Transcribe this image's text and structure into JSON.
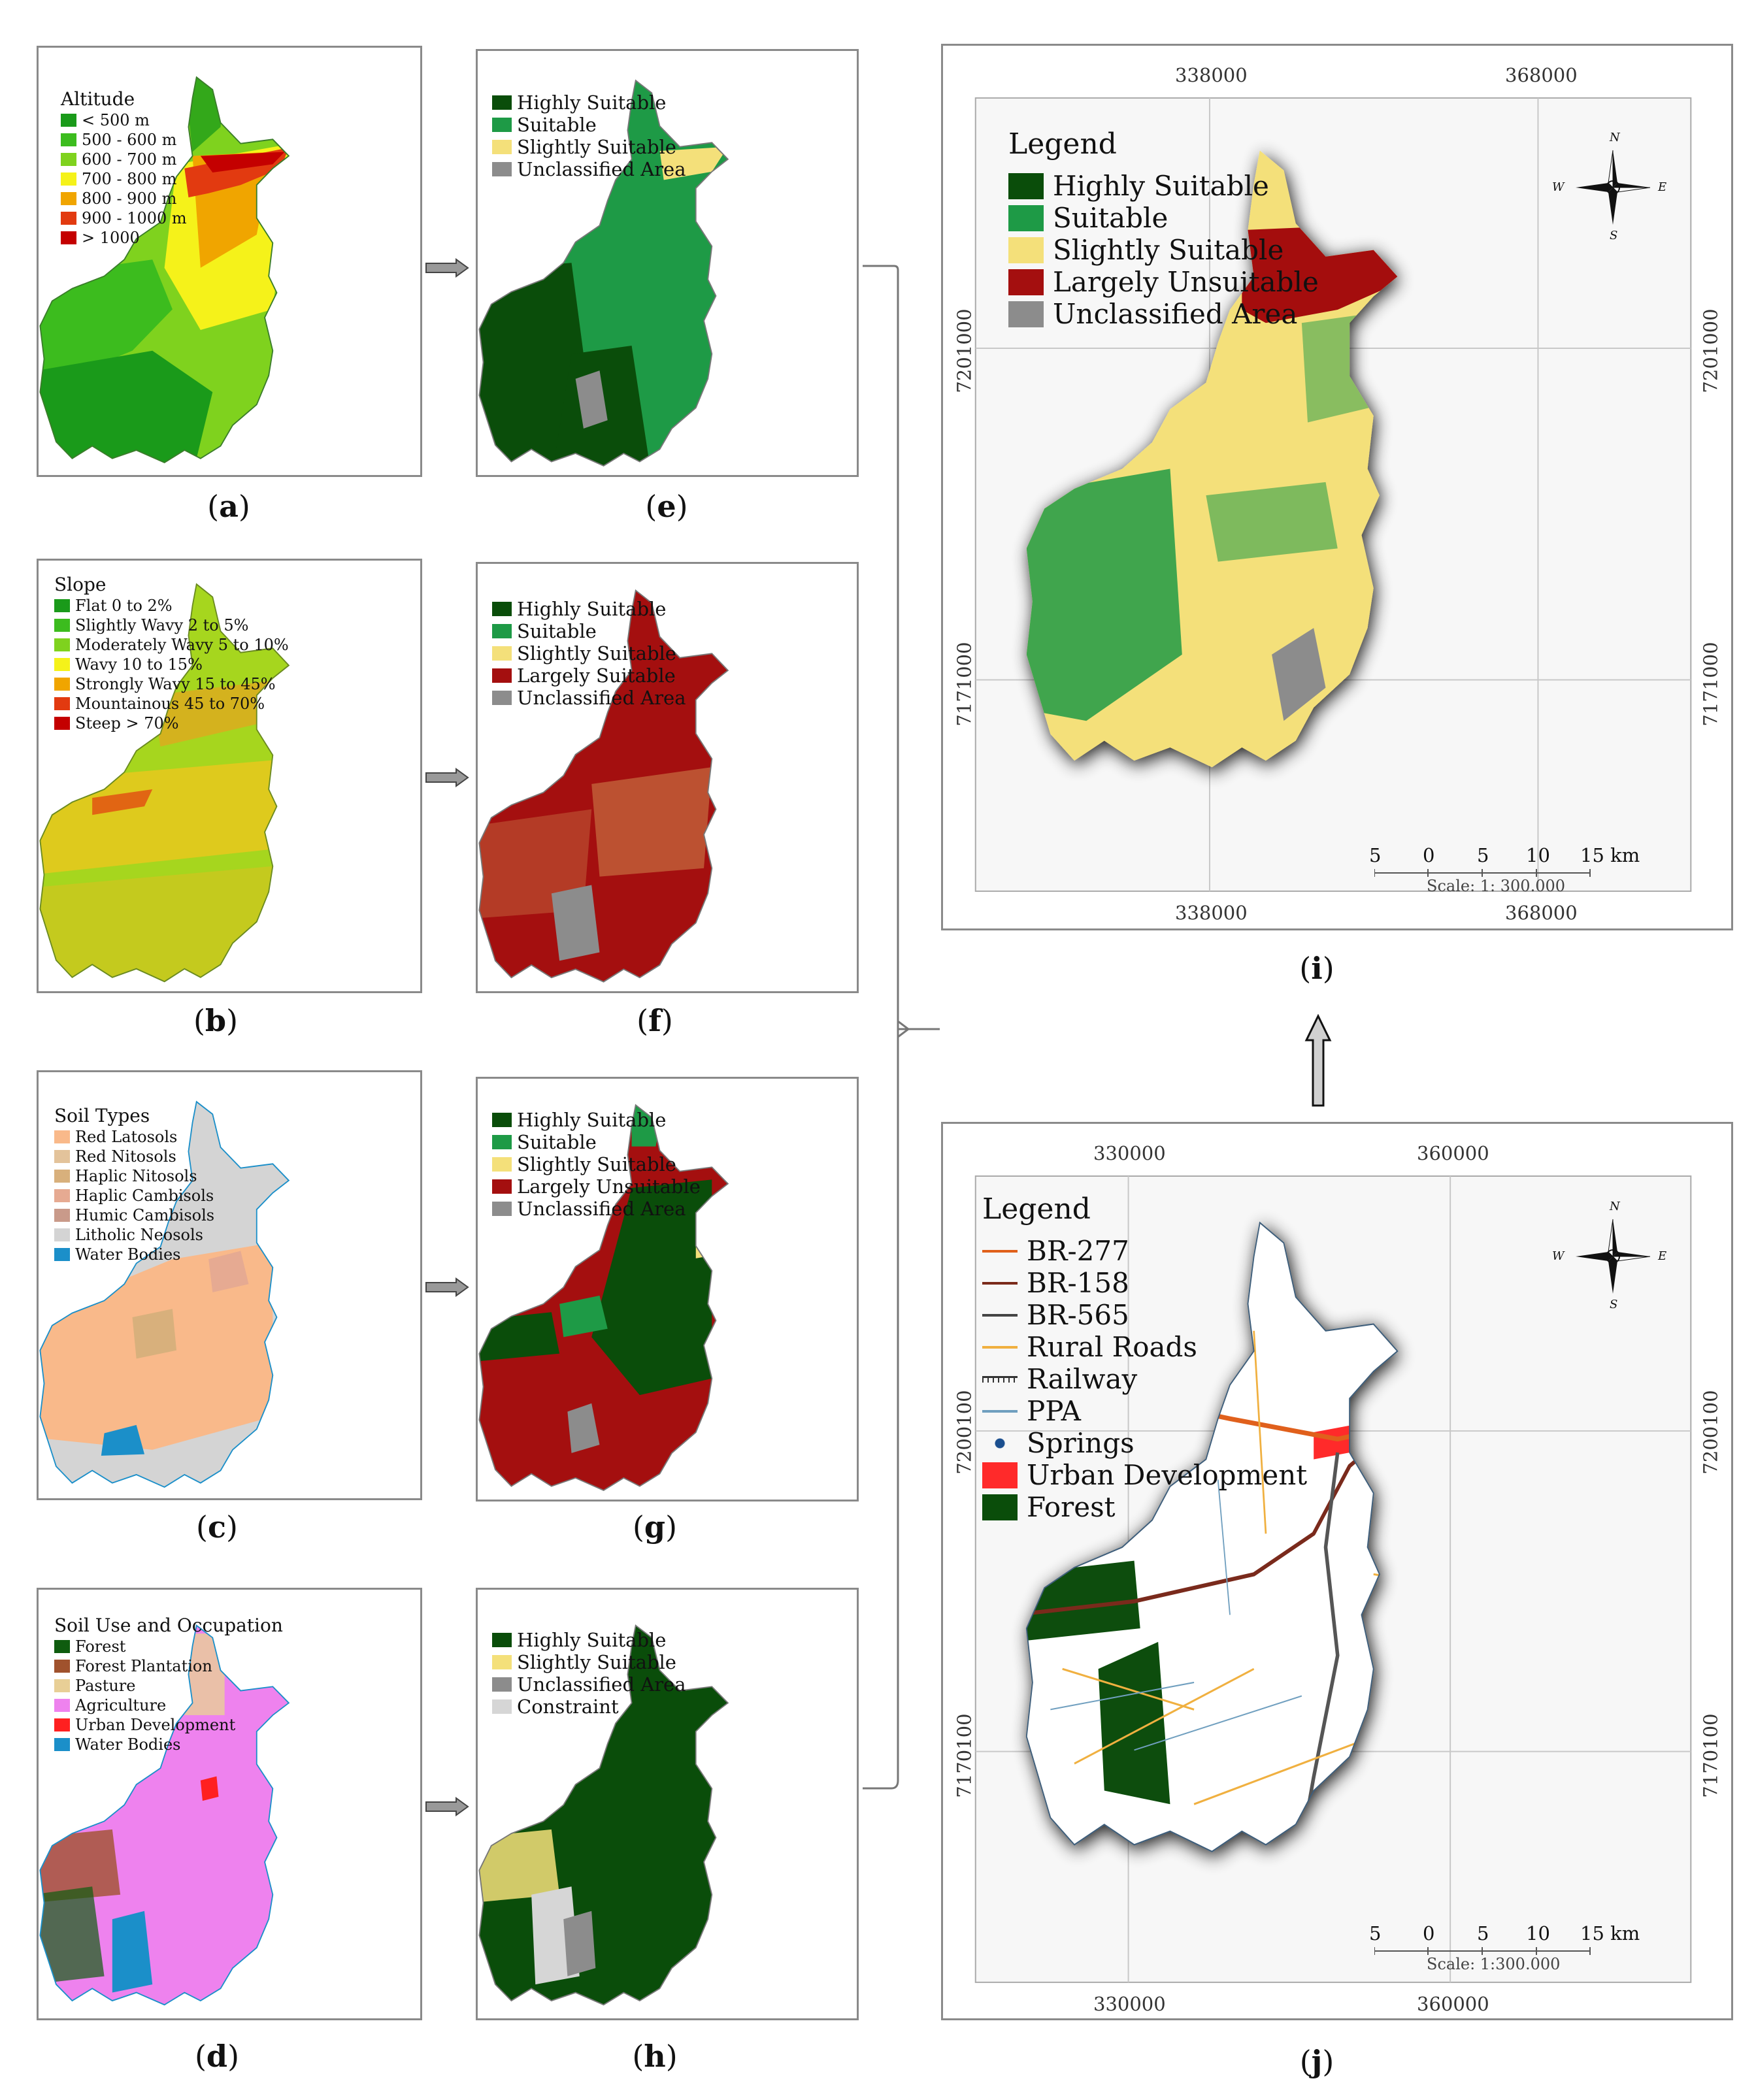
{
  "captions": {
    "a": "a",
    "b": "b",
    "c": "c",
    "d": "d",
    "e": "e",
    "f": "f",
    "g": "g",
    "h": "h",
    "i": "i",
    "j": "j"
  },
  "panel_a": {
    "title": "Altitude",
    "items": [
      {
        "label": "< 500 m",
        "color": "#1a9a1a"
      },
      {
        "label": "500 - 600 m",
        "color": "#3cbc1e"
      },
      {
        "label": "600 - 700 m",
        "color": "#7fd21e"
      },
      {
        "label": "700 - 800 m",
        "color": "#f5f21a"
      },
      {
        "label": "800 - 900 m",
        "color": "#f0a500"
      },
      {
        "label": "900 - 1000 m",
        "color": "#e23a10"
      },
      {
        "label": "> 1000",
        "color": "#c40000"
      }
    ]
  },
  "panel_b": {
    "title": "Slope",
    "items": [
      {
        "label": "Flat 0 to 2%",
        "color": "#1a9a1a"
      },
      {
        "label": "Slightly Wavy 2 to 5%",
        "color": "#3cbc1e"
      },
      {
        "label": "Moderately Wavy 5 to 10%",
        "color": "#7fd21e"
      },
      {
        "label": "Wavy 10 to 15%",
        "color": "#f5f21a"
      },
      {
        "label": "Strongly Wavy 15 to 45%",
        "color": "#f0a500"
      },
      {
        "label": "Mountainous 45 to 70%",
        "color": "#e23a10"
      },
      {
        "label": "Steep > 70%",
        "color": "#c40000"
      }
    ]
  },
  "panel_c": {
    "title": "Soil Types",
    "items": [
      {
        "label": "Red Latosols",
        "color": "#f9b98a"
      },
      {
        "label": "Red Nitosols",
        "color": "#e3c39b"
      },
      {
        "label": "Haplic Nitosols",
        "color": "#d8b07c"
      },
      {
        "label": "Haplic Cambisols",
        "color": "#e6aa92"
      },
      {
        "label": "Humic Cambisols",
        "color": "#c99a8a"
      },
      {
        "label": "Litholic Neosols",
        "color": "#d4d4d4"
      },
      {
        "label": "Water Bodies",
        "color": "#1b8fc9"
      }
    ]
  },
  "panel_d": {
    "title": "Soil Use and Occupation",
    "items": [
      {
        "label": "Forest",
        "color": "#0f5c0f"
      },
      {
        "label": "Forest Plantation",
        "color": "#a0522d"
      },
      {
        "label": "Pasture",
        "color": "#e8cf96"
      },
      {
        "label": "Agriculture",
        "color": "#ee82ee"
      },
      {
        "label": "Urban Development",
        "color": "#ff2020"
      },
      {
        "label": "Water Bodies",
        "color": "#1b8fc9"
      }
    ]
  },
  "panel_e": {
    "items": [
      {
        "label": "Highly Suitable",
        "color": "#0a4d0a"
      },
      {
        "label": "Suitable",
        "color": "#1e9a46"
      },
      {
        "label": "Slightly Suitable",
        "color": "#f4e07a"
      },
      {
        "label": "Unclassified Area",
        "color": "#8c8c8c"
      }
    ]
  },
  "panel_f": {
    "items": [
      {
        "label": "Highly Suitable",
        "color": "#0a4d0a"
      },
      {
        "label": "Suitable",
        "color": "#1e9a46"
      },
      {
        "label": "Slightly Suitable",
        "color": "#f4e07a"
      },
      {
        "label": "Largely Suitable",
        "color": "#a40f0f"
      },
      {
        "label": "Unclassified Area",
        "color": "#8c8c8c"
      }
    ]
  },
  "panel_g": {
    "items": [
      {
        "label": "Highly Suitable",
        "color": "#0a4d0a"
      },
      {
        "label": "Suitable",
        "color": "#1e9a46"
      },
      {
        "label": "Slightly Suitable",
        "color": "#f4e07a"
      },
      {
        "label": "Largely Unsuitable",
        "color": "#a40f0f"
      },
      {
        "label": "Unclassified Area",
        "color": "#8c8c8c"
      }
    ]
  },
  "panel_h": {
    "items": [
      {
        "label": "Highly Suitable",
        "color": "#0a4d0a"
      },
      {
        "label": "Slightly Suitable",
        "color": "#f4e07a"
      },
      {
        "label": "Unclassified Area",
        "color": "#8c8c8c"
      },
      {
        "label": "Constraint",
        "color": "#d6d6d6"
      }
    ]
  },
  "panel_i": {
    "title": "Legend",
    "items": [
      {
        "label": "Highly Suitable",
        "color": "#0a4d0a"
      },
      {
        "label": "Suitable",
        "color": "#1e9a46"
      },
      {
        "label": "Slightly Suitable",
        "color": "#f4e07a"
      },
      {
        "label": "Largely Unsuitable",
        "color": "#a40f0f"
      },
      {
        "label": "Unclassified Area",
        "color": "#8c8c8c"
      }
    ],
    "top_x": [
      "338000",
      "368000"
    ],
    "bottom_x": [
      "338000",
      "368000"
    ],
    "left_y": [
      "7201000",
      "7171000"
    ],
    "right_y": [
      "7201000",
      "7171000"
    ],
    "scale_ticks": [
      "5",
      "0",
      "5",
      "10",
      "15 km"
    ],
    "scale_note": "Scale: 1: 300.000",
    "compass": {
      "n": "N",
      "s": "S",
      "e": "E",
      "w": "W"
    }
  },
  "panel_j": {
    "title": "Legend",
    "items": [
      {
        "label": "BR-277",
        "kind": "line",
        "color": "#e0601a"
      },
      {
        "label": "BR-158",
        "kind": "line",
        "color": "#7a2a1a"
      },
      {
        "label": "BR-565",
        "kind": "line",
        "color": "#444444"
      },
      {
        "label": "Rural Roads",
        "kind": "line",
        "color": "#f0b040"
      },
      {
        "label": "Railway",
        "kind": "rail",
        "color": "#333333"
      },
      {
        "label": "PPA",
        "kind": "line",
        "color": "#6f9fbf"
      },
      {
        "label": "Springs",
        "kind": "dot",
        "color": "#1b4f8f"
      },
      {
        "label": "Urban Development",
        "kind": "fill",
        "color": "#ff2a2a"
      },
      {
        "label": "Forest",
        "kind": "fill",
        "color": "#0a4d0a"
      }
    ],
    "top_x": [
      "330000",
      "360000"
    ],
    "bottom_x": [
      "330000",
      "360000"
    ],
    "left_y": [
      "7200100",
      "7170100"
    ],
    "right_y": [
      "7200100",
      "7170100"
    ],
    "scale_ticks": [
      "5",
      "0",
      "5",
      "10",
      "15 km"
    ],
    "scale_note": "Scale: 1:300.000",
    "compass": {
      "n": "N",
      "s": "S",
      "e": "E",
      "w": "W"
    }
  }
}
